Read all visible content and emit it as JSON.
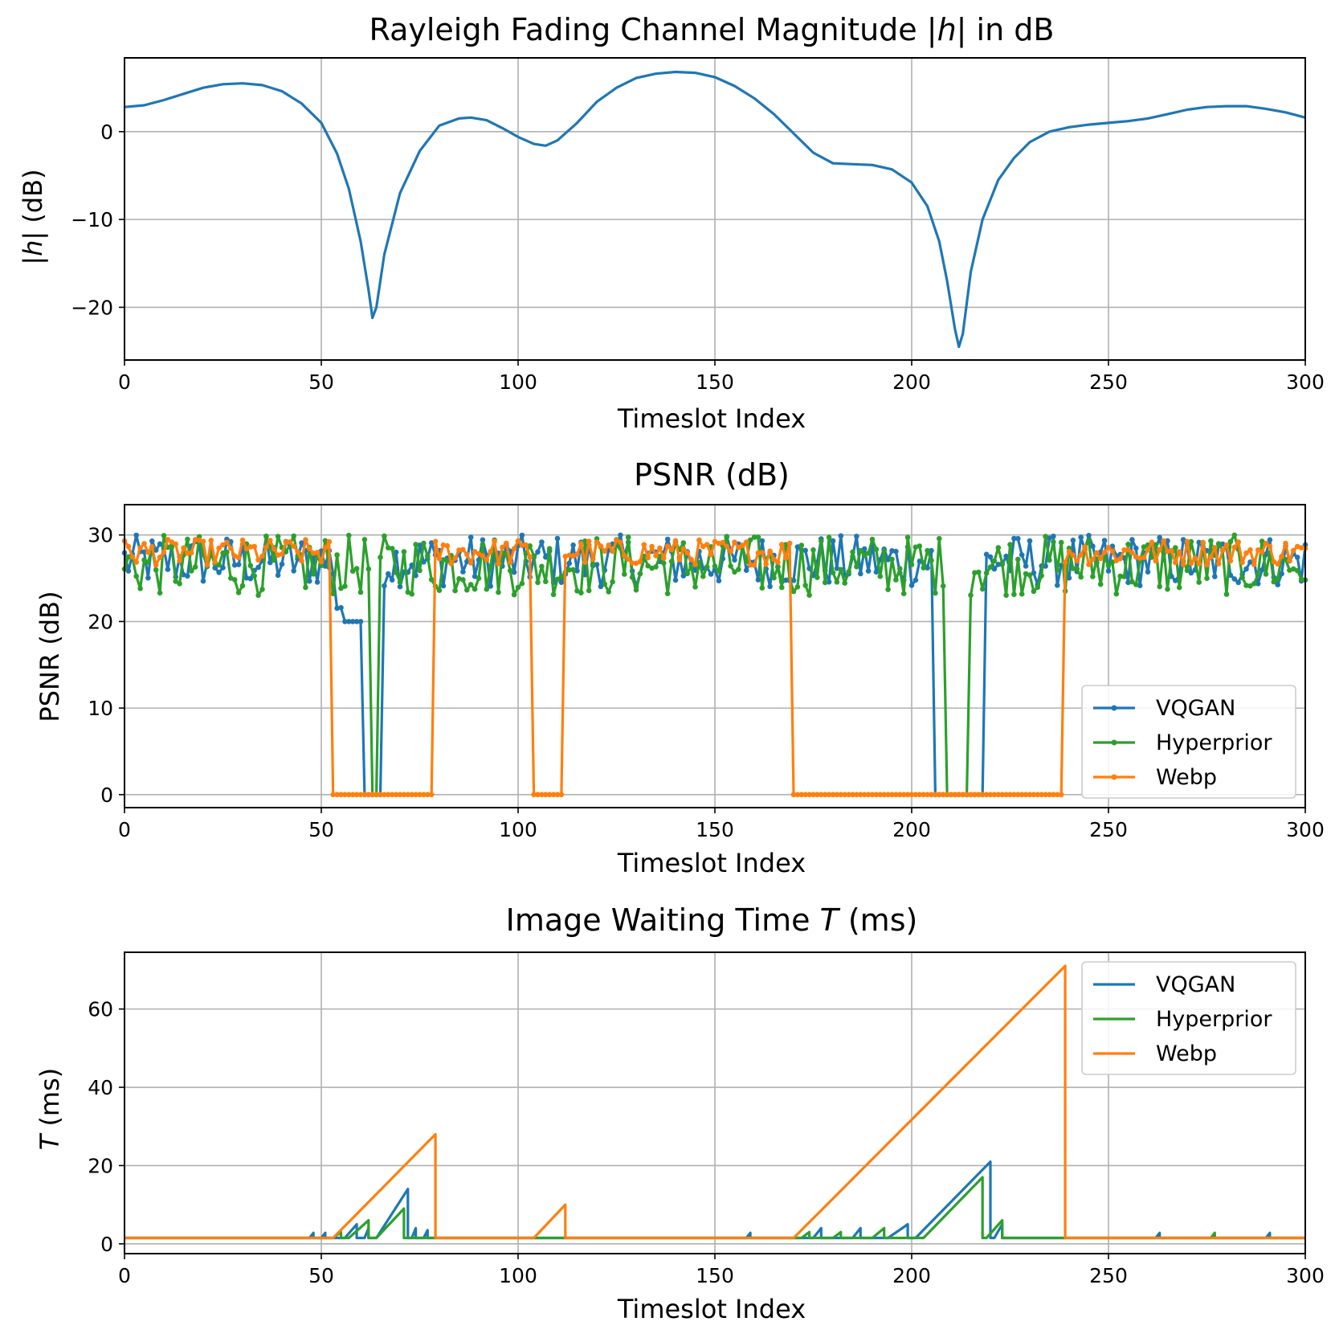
{
  "chart_data": [
    {
      "type": "line",
      "title": "Rayleigh Fading Channel Magnitude |h| in dB",
      "xlabel": "Timeslot Index",
      "ylabel": "|h| (dB)",
      "xlim": [
        0,
        300
      ],
      "ylim": [
        -26,
        8.4
      ],
      "xticks": [
        0,
        50,
        100,
        150,
        200,
        250,
        300
      ],
      "yticks": [
        -20,
        -10,
        0
      ],
      "grid": true,
      "series": [
        {
          "color": "#1f77b4",
          "x": [
            0,
            5,
            10,
            15,
            20,
            25,
            30,
            35,
            40,
            45,
            50,
            54,
            57,
            60,
            62,
            63,
            64,
            66,
            70,
            75,
            80,
            85,
            88,
            92,
            96,
            100,
            104,
            107,
            110,
            115,
            120,
            125,
            130,
            135,
            140,
            145,
            150,
            155,
            160,
            165,
            170,
            175,
            180,
            185,
            190,
            195,
            200,
            204,
            207,
            209,
            211,
            212,
            213,
            215,
            218,
            222,
            226,
            230,
            235,
            240,
            245,
            250,
            255,
            260,
            265,
            270,
            275,
            280,
            285,
            290,
            295,
            300
          ],
          "y": [
            2.8,
            3.0,
            3.6,
            4.3,
            5.0,
            5.4,
            5.5,
            5.3,
            4.6,
            3.2,
            1.0,
            -2.5,
            -6.5,
            -12.5,
            -18.0,
            -21.2,
            -20.0,
            -14.0,
            -7.0,
            -2.2,
            0.7,
            1.5,
            1.6,
            1.3,
            0.4,
            -0.6,
            -1.4,
            -1.6,
            -1.0,
            1.0,
            3.4,
            5.0,
            6.1,
            6.6,
            6.8,
            6.7,
            6.2,
            5.2,
            3.8,
            2.0,
            -0.2,
            -2.4,
            -3.6,
            -3.7,
            -3.8,
            -4.3,
            -5.8,
            -8.5,
            -12.5,
            -17.0,
            -22.5,
            -24.5,
            -23.0,
            -16.0,
            -10.0,
            -5.5,
            -3.0,
            -1.2,
            0.0,
            0.5,
            0.8,
            1.0,
            1.2,
            1.5,
            2.0,
            2.5,
            2.8,
            2.9,
            2.9,
            2.6,
            2.2,
            1.6
          ]
        }
      ]
    },
    {
      "type": "line",
      "title": "PSNR (dB)",
      "xlabel": "Timeslot Index",
      "ylabel": "PSNR (dB)",
      "xlim": [
        0,
        300
      ],
      "ylim": [
        -1.5,
        33.5
      ],
      "xticks": [
        0,
        50,
        100,
        150,
        200,
        250,
        300
      ],
      "yticks": [
        0,
        10,
        20,
        30
      ],
      "grid": true,
      "legend": "lower-right",
      "series": [
        {
          "name": "VQGAN",
          "color": "#1f77b4",
          "markers": true,
          "segments": [
            {
              "x0": 0,
              "x1": 53,
              "mean": 27,
              "amp": 3
            },
            {
              "x0": 54,
              "x1": 58,
              "mean": 22,
              "amp": 2
            },
            {
              "x0": 56,
              "x1": 60,
              "y": 20
            },
            {
              "x0": 61,
              "x1": 65,
              "y": 0
            },
            {
              "x0": 66,
              "x1": 205,
              "mean": 27,
              "amp": 3
            },
            {
              "x0": 206,
              "x1": 218,
              "y": 0
            },
            {
              "x0": 219,
              "x1": 300,
              "mean": 27,
              "amp": 3
            }
          ]
        },
        {
          "name": "Hyperprior",
          "color": "#2ca02c",
          "markers": true,
          "segments": [
            {
              "x0": 0,
              "x1": 62,
              "mean": 26.5,
              "amp": 3.5
            },
            {
              "x0": 63,
              "x1": 64,
              "y": 0
            },
            {
              "x0": 65,
              "x1": 208,
              "mean": 26.5,
              "amp": 3.5
            },
            {
              "x0": 209,
              "x1": 214,
              "y": 0
            },
            {
              "x0": 215,
              "x1": 300,
              "mean": 26.5,
              "amp": 3.5
            }
          ]
        },
        {
          "name": "Webp",
          "color": "#ff7f0e",
          "markers": true,
          "segments": [
            {
              "x0": 0,
              "x1": 52,
              "mean": 28,
              "amp": 1.5
            },
            {
              "x0": 53,
              "x1": 78,
              "y": 0
            },
            {
              "x0": 79,
              "x1": 103,
              "mean": 28,
              "amp": 1.5
            },
            {
              "x0": 104,
              "x1": 111,
              "y": 0
            },
            {
              "x0": 112,
              "x1": 169,
              "mean": 28,
              "amp": 1.5
            },
            {
              "x0": 170,
              "x1": 238,
              "y": 0
            },
            {
              "x0": 239,
              "x1": 300,
              "mean": 28,
              "amp": 1.5
            }
          ]
        }
      ]
    },
    {
      "type": "line",
      "title": "Image Waiting Time T (ms)",
      "title_parts": [
        "Image Waiting Time ",
        "T",
        " (ms)"
      ],
      "xlabel": "Timeslot Index",
      "ylabel": "T (ms)",
      "ylabel_parts": [
        "T",
        " (ms)"
      ],
      "xlim": [
        0,
        300
      ],
      "ylim": [
        -2.5,
        74.5
      ],
      "xticks": [
        0,
        50,
        100,
        150,
        200,
        250,
        300
      ],
      "yticks": [
        0,
        20,
        40,
        60
      ],
      "grid": true,
      "legend": "top-right",
      "series": [
        {
          "name": "VQGAN",
          "color": "#1f77b4",
          "markers": false,
          "base": 1.5,
          "ramps": [
            [
              47,
              48,
              2.8
            ],
            [
              50,
              51,
              2.8
            ],
            [
              56,
              59,
              5
            ],
            [
              61,
              62,
              4
            ],
            [
              64,
              72,
              14
            ],
            [
              73,
              74,
              4
            ],
            [
              76,
              77,
              3.5
            ],
            [
              158,
              159,
              2.8
            ],
            [
              175,
              177,
              4
            ],
            [
              185,
              187,
              4
            ],
            [
              194,
              199,
              5
            ],
            [
              201,
              220,
              21
            ],
            [
              221,
              223,
              5
            ],
            [
              262,
              263,
              2.8
            ],
            [
              290,
              291,
              2.8
            ]
          ]
        },
        {
          "name": "Hyperprior",
          "color": "#2ca02c",
          "markers": false,
          "base": 1.5,
          "ramps": [
            [
              53,
              55,
              3
            ],
            [
              57,
              62,
              6
            ],
            [
              64,
              71,
              9
            ],
            [
              172,
              174,
              3
            ],
            [
              180,
              182,
              3
            ],
            [
              190,
              193,
              4
            ],
            [
              203,
              218,
              17
            ],
            [
              219,
              223,
              6
            ],
            [
              276,
              277,
              2.8
            ]
          ]
        },
        {
          "name": "Webp",
          "color": "#ff7f0e",
          "markers": false,
          "base": 1.5,
          "ramps": [
            [
              53,
              79,
              28
            ],
            [
              104,
              112,
              10
            ],
            [
              170,
              239,
              71
            ]
          ]
        }
      ]
    }
  ]
}
